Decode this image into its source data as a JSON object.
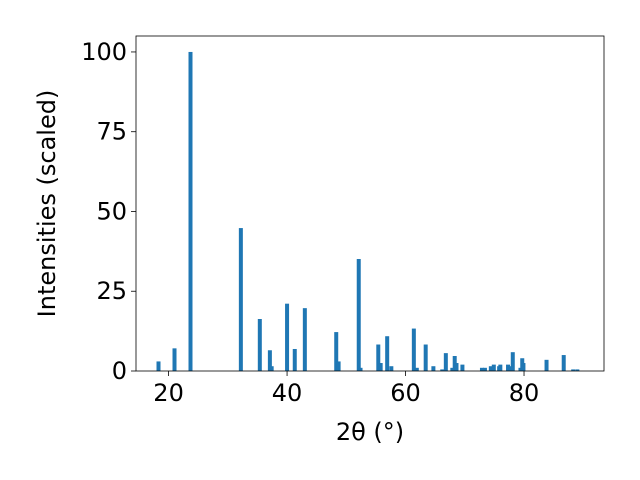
{
  "chart_data": {
    "type": "bar",
    "xlabel": "2θ (°)",
    "ylabel": "Intensities (scaled)",
    "xlim": [
      14.5,
      93.5
    ],
    "ylim": [
      0,
      105
    ],
    "x_ticks": [
      20,
      40,
      60,
      80
    ],
    "y_ticks": [
      0,
      25,
      50,
      75,
      100
    ],
    "grid": false,
    "bar_color": "#1f77b4",
    "series": [
      {
        "x": [
          18.3,
          21.0,
          23.7,
          32.2,
          35.4,
          37.1,
          37.4,
          40.0,
          41.3,
          43.0,
          48.3,
          48.7,
          52.1,
          52.4,
          55.4,
          55.8,
          56.9,
          57.6,
          61.4,
          61.9,
          63.4,
          64.7,
          66.2,
          66.8,
          67.9,
          68.3,
          68.6,
          69.6,
          72.9,
          73.4,
          74.4,
          74.9,
          75.8,
          76.0,
          77.3,
          77.8,
          78.1,
          79.4,
          79.7,
          79.9,
          83.8,
          86.7,
          88.3,
          89.0
        ],
        "y": [
          3.0,
          7.1,
          100,
          44.8,
          16.3,
          6.5,
          1.5,
          21.1,
          6.9,
          19.7,
          12.2,
          3.0,
          35.1,
          1.0,
          8.3,
          2.5,
          10.9,
          1.5,
          13.3,
          1.0,
          8.3,
          1.5,
          0.5,
          5.6,
          1.0,
          4.7,
          2.5,
          2.0,
          1.0,
          1.0,
          1.5,
          2.0,
          1.5,
          2.0,
          2.0,
          1.5,
          5.9,
          1.0,
          4.0,
          2.5,
          3.5,
          5.0,
          0.5,
          0.5
        ]
      }
    ]
  }
}
